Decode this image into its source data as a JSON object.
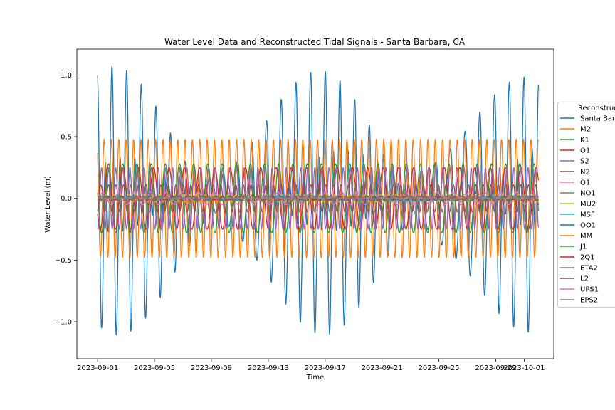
{
  "chart_data": {
    "type": "line",
    "title": "Water Level Data and Reconstructed Tidal Signals - Santa Barbara, CA",
    "xlabel": "Time",
    "ylabel": "Water Level (m)",
    "xlim": [
      "2023-08-30T13:00",
      "2023-10-03T02:00"
    ],
    "ylim": [
      -1.3,
      1.21
    ],
    "x_ticks": [
      "2023-09-01",
      "2023-09-05",
      "2023-09-09",
      "2023-09-13",
      "2023-09-17",
      "2023-09-21",
      "2023-09-25",
      "2023-09-29",
      "2023-10-01"
    ],
    "y_ticks": [
      1.0,
      0.5,
      0.0,
      -0.5,
      -1.0
    ],
    "y_tick_labels": [
      "1.0",
      "0.5",
      "0.0",
      "−0.5",
      "−1.0"
    ],
    "grid": false,
    "legend": {
      "title": "Reconstructed",
      "placement": "right"
    },
    "time_range": [
      "2023-09-01T00:00",
      "2023-10-02T00:00"
    ],
    "series": [
      {
        "name": "Santa Barbara",
        "color": "#1f77b4",
        "kind": "observed",
        "amplitude_range": [
          -1.18,
          1.1
        ]
      },
      {
        "name": "M2",
        "color": "#ff7f0e",
        "amplitude": 0.48,
        "period_hours": 12.4206
      },
      {
        "name": "K1",
        "color": "#2ca02c",
        "amplitude": 0.28,
        "period_hours": 23.9345
      },
      {
        "name": "O1",
        "color": "#d62728",
        "amplitude": 0.25,
        "period_hours": 25.8193
      },
      {
        "name": "S2",
        "color": "#9467bd",
        "amplitude": 0.25,
        "period_hours": 12.0
      },
      {
        "name": "N2",
        "color": "#8c564b",
        "amplitude": 0.11,
        "period_hours": 12.6583
      },
      {
        "name": "Q1",
        "color": "#e377c2",
        "amplitude": 0.05,
        "period_hours": 26.8684
      },
      {
        "name": "NO1",
        "color": "#7f7f7f",
        "amplitude": 0.02,
        "period_hours": 24.8332
      },
      {
        "name": "MU2",
        "color": "#bcbd22",
        "amplitude": 0.03,
        "period_hours": 12.8718
      },
      {
        "name": "MSF",
        "color": "#17becf",
        "amplitude": 0.02,
        "period_hours": 354.37
      },
      {
        "name": "OO1",
        "color": "#1f77b4",
        "amplitude": 0.01,
        "period_hours": 22.3061
      },
      {
        "name": "MM",
        "color": "#ff7f0e",
        "amplitude": 0.02,
        "period_hours": 661.31
      },
      {
        "name": "J1",
        "color": "#2ca02c",
        "amplitude": 0.02,
        "period_hours": 23.0985
      },
      {
        "name": "2Q1",
        "color": "#d62728",
        "amplitude": 0.01,
        "period_hours": 28.0062
      },
      {
        "name": "ETA2",
        "color": "#9467bd",
        "amplitude": 0.01,
        "period_hours": 12.0272
      },
      {
        "name": "L2",
        "color": "#8c564b",
        "amplitude": 0.02,
        "period_hours": 12.1916
      },
      {
        "name": "UPS1",
        "color": "#e377c2",
        "amplitude": 0.005,
        "period_hours": 21.5782
      },
      {
        "name": "EPS2",
        "color": "#7f7f7f",
        "amplitude": 0.005,
        "period_hours": 13.1273
      }
    ]
  }
}
